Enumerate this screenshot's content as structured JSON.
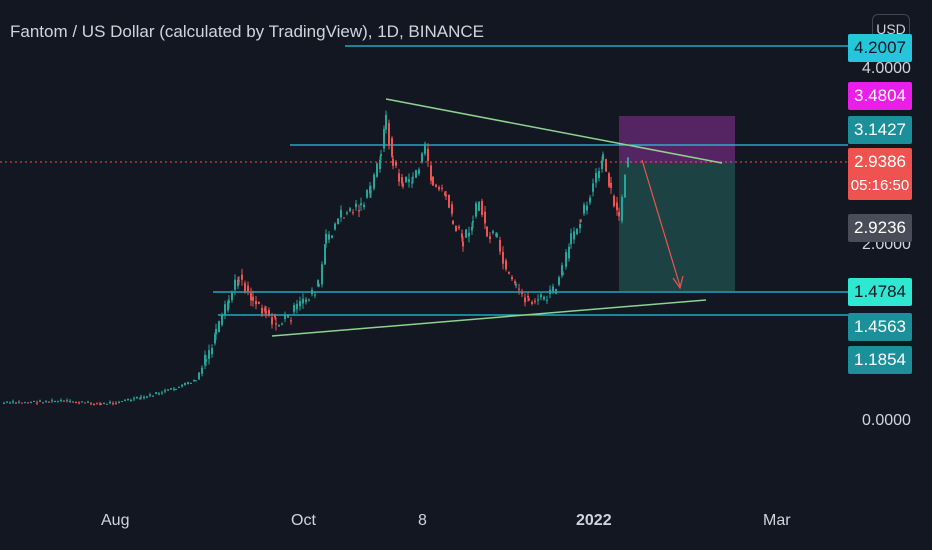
{
  "header": {
    "title": "Fantom / US Dollar (calculated by TradingView), 1D, BINANCE",
    "currency_button": "USD"
  },
  "price_axis": {
    "tick_labels": [
      "4.0000",
      "2.0000",
      "0.0000"
    ]
  },
  "time_axis": {
    "labels": [
      {
        "text": "Aug",
        "bold": false
      },
      {
        "text": "Oct",
        "bold": false
      },
      {
        "text": "8",
        "bold": false
      },
      {
        "text": "2022",
        "bold": true
      },
      {
        "text": "Mar",
        "bold": false
      }
    ]
  },
  "price_tags": [
    {
      "value": "4.2007",
      "color": "#26c6da",
      "text_color": "#131722"
    },
    {
      "value": "3.4804",
      "color": "#e91ee9",
      "text_color": "#ffffff"
    },
    {
      "value": "3.1427",
      "color": "#1b8f9a",
      "text_color": "#ffffff"
    },
    {
      "value": "2.9386",
      "sub": "05:16:50",
      "color": "#ef5350",
      "text_color": "#ffffff"
    },
    {
      "value": "2.9236",
      "color": "#4a4d57",
      "text_color": "#ffffff"
    },
    {
      "value": "1.4784",
      "color": "#2ee8d2",
      "text_color": "#131722"
    },
    {
      "value": "1.4563",
      "color": "#1b8f9a",
      "text_color": "#ffffff"
    },
    {
      "value": "1.1854",
      "color": "#1b8f9a",
      "text_color": "#ffffff"
    }
  ],
  "colors": {
    "background": "#131722",
    "up_candle": "#26a69a",
    "down_candle": "#ef5350",
    "horizontal_line": "#26c6da",
    "trendline": "#8fd18f",
    "stop_zone": "#6b2a7a",
    "target_zone": "#1e4a4a",
    "projection_arrow": "#ef5350",
    "current_price_line": "#ef5350"
  },
  "chart_data": {
    "type": "candlestick",
    "symbol": "Fantom / US Dollar",
    "interval": "1D",
    "exchange": "BINANCE",
    "y_ticks": [
      0,
      2,
      4
    ],
    "last_price": 2.9386,
    "countdown": "05:16:50",
    "horizontal_levels": [
      4.2007,
      3.1427,
      1.4784,
      1.4563
    ],
    "position_tool": {
      "entry": 2.9386,
      "stop": 3.4804,
      "target": 1.4784
    }
  }
}
